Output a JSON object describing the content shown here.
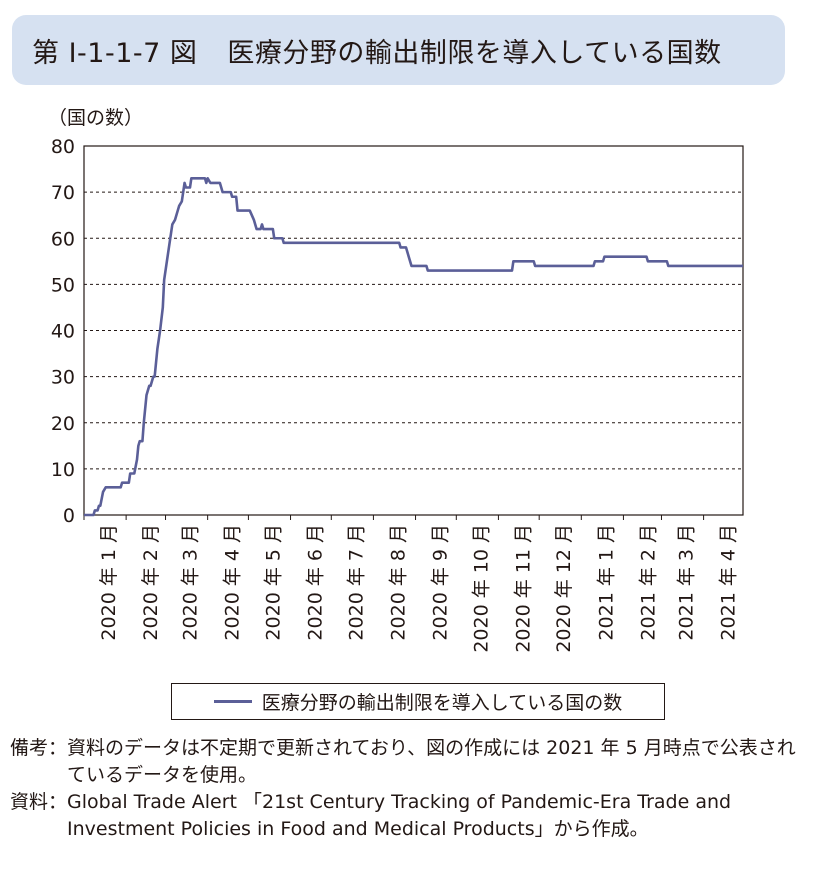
{
  "figure": {
    "number": "第 Ⅰ-1-1-7 図",
    "title": "医療分野の輸出制限を導入している国数"
  },
  "chart_data": {
    "type": "line",
    "title": "医療分野の輸出制限を導入している国数",
    "ylabel": "（国の数）",
    "xlabel": "",
    "ylim": [
      0,
      80
    ],
    "yticks": [
      0,
      10,
      20,
      30,
      40,
      50,
      60,
      70,
      80
    ],
    "grid": "horizontal dashed",
    "legend_position": "bottom",
    "x_tick_labels": [
      "2020 年 1 月",
      "2020 年 2 月",
      "2020 年 3 月",
      "2020 年 4 月",
      "2020 年 5 月",
      "2020 年 6 月",
      "2020 年 7 月",
      "2020 年 8 月",
      "2020 年 9 月",
      "2020 年 10 月",
      "2020 年 11 月",
      "2020 年 12 月",
      "2021 年 1 月",
      "2021 年 2 月",
      "2021 年 3 月",
      "2021 年 4 月"
    ],
    "series": [
      {
        "name": "医療分野の輸出制限を導入している国の数",
        "color": "#5b5f98",
        "points": [
          [
            "2020-01-01",
            0
          ],
          [
            "2020-01-08",
            0
          ],
          [
            "2020-01-09",
            1
          ],
          [
            "2020-01-11",
            1
          ],
          [
            "2020-01-12",
            2
          ],
          [
            "2020-01-13",
            2
          ],
          [
            "2020-01-15",
            5
          ],
          [
            "2020-01-17",
            6
          ],
          [
            "2020-01-28",
            6
          ],
          [
            "2020-01-29",
            7
          ],
          [
            "2020-02-03",
            7
          ],
          [
            "2020-02-04",
            9
          ],
          [
            "2020-02-07",
            9
          ],
          [
            "2020-02-09",
            12
          ],
          [
            "2020-02-10",
            15
          ],
          [
            "2020-02-11",
            16
          ],
          [
            "2020-02-13",
            16
          ],
          [
            "2020-02-14",
            20
          ],
          [
            "2020-02-16",
            26
          ],
          [
            "2020-02-18",
            28
          ],
          [
            "2020-02-19",
            28
          ],
          [
            "2020-02-21",
            30
          ],
          [
            "2020-02-22",
            30
          ],
          [
            "2020-02-24",
            36
          ],
          [
            "2020-02-26",
            40
          ],
          [
            "2020-02-28",
            45
          ],
          [
            "2020-02-29",
            51
          ],
          [
            "2020-03-02",
            55
          ],
          [
            "2020-03-04",
            59
          ],
          [
            "2020-03-06",
            63
          ],
          [
            "2020-03-08",
            64
          ],
          [
            "2020-03-10",
            66
          ],
          [
            "2020-03-11",
            67
          ],
          [
            "2020-03-13",
            68
          ],
          [
            "2020-03-15",
            72
          ],
          [
            "2020-03-16",
            71
          ],
          [
            "2020-03-19",
            71
          ],
          [
            "2020-03-20",
            73
          ],
          [
            "2020-03-30",
            73
          ],
          [
            "2020-03-31",
            72
          ],
          [
            "2020-04-01",
            73
          ],
          [
            "2020-04-03",
            72
          ],
          [
            "2020-04-10",
            72
          ],
          [
            "2020-04-12",
            70
          ],
          [
            "2020-04-18",
            70
          ],
          [
            "2020-04-19",
            69
          ],
          [
            "2020-04-22",
            69
          ],
          [
            "2020-04-23",
            66
          ],
          [
            "2020-05-02",
            66
          ],
          [
            "2020-05-05",
            64
          ],
          [
            "2020-05-07",
            62
          ],
          [
            "2020-05-10",
            62
          ],
          [
            "2020-05-11",
            63
          ],
          [
            "2020-05-12",
            62
          ],
          [
            "2020-05-19",
            62
          ],
          [
            "2020-05-20",
            60
          ],
          [
            "2020-05-26",
            60
          ],
          [
            "2020-05-27",
            59
          ],
          [
            "2020-08-20",
            59
          ],
          [
            "2020-08-21",
            58
          ],
          [
            "2020-08-25",
            58
          ],
          [
            "2020-08-27",
            56
          ],
          [
            "2020-08-29",
            54
          ],
          [
            "2020-09-09",
            54
          ],
          [
            "2020-09-10",
            53
          ],
          [
            "2020-11-11",
            53
          ],
          [
            "2020-11-12",
            55
          ],
          [
            "2020-11-27",
            55
          ],
          [
            "2020-11-28",
            54
          ],
          [
            "2021-01-10",
            54
          ],
          [
            "2021-01-11",
            55
          ],
          [
            "2021-01-17",
            55
          ],
          [
            "2021-01-18",
            56
          ],
          [
            "2021-02-18",
            56
          ],
          [
            "2021-02-19",
            55
          ],
          [
            "2021-03-05",
            55
          ],
          [
            "2021-03-06",
            54
          ],
          [
            "2021-04-30",
            54
          ]
        ]
      }
    ]
  },
  "notes": [
    {
      "head": "備考：",
      "text": "資料のデータは不定期で更新されており、図の作成には 2021 年 5 月時点で公表されているデータを使用。"
    },
    {
      "head": "資料：",
      "text": "Global Trade Alert 「21st Century Tracking of Pandemic-Era Trade and Investment Policies in Food and Medical Products」から作成。"
    }
  ]
}
